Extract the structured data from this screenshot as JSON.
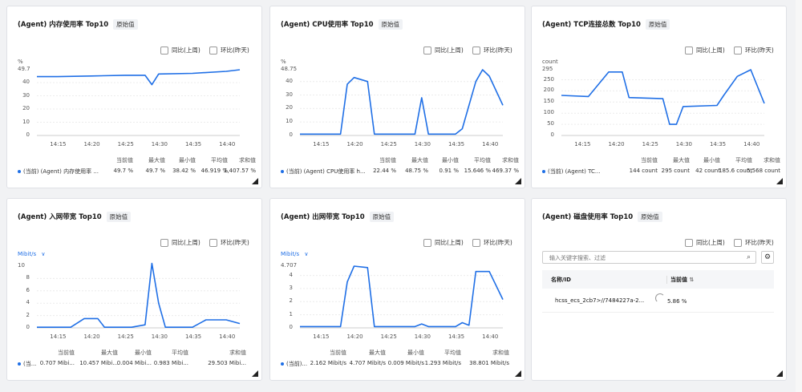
{
  "compare": {
    "week": "同比(上周)",
    "day": "环比(昨天)"
  },
  "raw_tag": "原始值",
  "stat_headers": [
    "当前值",
    "最大值",
    "最小值",
    "平均值",
    "求和值"
  ],
  "cards": [
    {
      "title": "(Agent) 内存使用率 Top10",
      "unit": "%",
      "y_top_label": "49.7",
      "y_ticks": [
        "40",
        "30",
        "20",
        "10",
        "0"
      ],
      "x_ticks": [
        "14:15",
        "14:20",
        "14:25",
        "14:30",
        "14:35",
        "14:40"
      ],
      "series_name": "(当前) (Agent) 内存使用率 ...",
      "stats": [
        "49.7 %",
        "49.7 %",
        "38.42 %",
        "46.919 %",
        "1,407.57 %"
      ]
    },
    {
      "title": "(Agent) CPU使用率 Top10",
      "unit": "%",
      "y_top_label": "48.75",
      "y_ticks": [
        "40",
        "30",
        "20",
        "10",
        "0"
      ],
      "x_ticks": [
        "14:15",
        "14:20",
        "14:25",
        "14:30",
        "14:35",
        "14:40"
      ],
      "series_name": "(当前) (Agent) CPU使用率 h...",
      "stats": [
        "22.44 %",
        "48.75 %",
        "0.91 %",
        "15.646 %",
        "469.37 %"
      ]
    },
    {
      "title": "(Agent) TCP连接总数 Top10",
      "unit": "count",
      "y_top_label": "295",
      "y_ticks": [
        "250",
        "200",
        "150",
        "100",
        "50",
        "0"
      ],
      "x_ticks": [
        "14:15",
        "14:20",
        "14:25",
        "14:30",
        "14:35",
        "14:40"
      ],
      "series_name": "(当前) (Agent) TC...",
      "stats": [
        "144 count",
        "295 count",
        "42 count",
        "185.6 count",
        "5,568 count"
      ]
    },
    {
      "title": "(Agent) 入网带宽 Top10",
      "unit": "Mibit/s",
      "y_top_label": "10",
      "y_ticks": [
        "8",
        "6",
        "4",
        "2",
        "0"
      ],
      "x_ticks": [
        "14:15",
        "14:20",
        "14:25",
        "14:30",
        "14:35",
        "14:40"
      ],
      "series_name": "(当...",
      "stats": [
        "0.707 Mibi...",
        "10.457 Mibi...",
        "0.004 Mibi...",
        "0.983 Mibi...",
        "29.503 Mibi..."
      ]
    },
    {
      "title": "(Agent) 出网带宽 Top10",
      "unit": "Mibit/s",
      "y_top_label": "4.707",
      "y_ticks": [
        "4",
        "3",
        "2",
        "1",
        "0"
      ],
      "x_ticks": [
        "14:15",
        "14:20",
        "14:25",
        "14:30",
        "14:35",
        "14:40"
      ],
      "series_name": "(当前)...",
      "stats": [
        "2.162 Mibit/s",
        "4.707 Mibit/s",
        "0.009 Mibit/s",
        "1.293 Mibit/s",
        "38.801 Mibit/s"
      ]
    }
  ],
  "disk": {
    "title": "(Agent) 磁盘使用率 Top10",
    "search_placeholder": "输入关键字搜索、过滤",
    "col_name": "名称/ID",
    "col_current": "当前值",
    "row_name": "hcss_ecs_2cb7>//7484227a-2...",
    "row_value": "5.86 %"
  },
  "chart_data": [
    {
      "type": "line",
      "title": "(Agent) 内存使用率 Top10",
      "ylabel": "%",
      "ylim": [
        0,
        49.7
      ],
      "x": [
        "14:12",
        "14:15",
        "14:20",
        "14:25",
        "14:28",
        "14:29",
        "14:30",
        "14:35",
        "14:40",
        "14:42"
      ],
      "values": [
        44.5,
        44.5,
        45,
        45.5,
        45.5,
        38.4,
        46.5,
        47,
        48.5,
        49.7
      ]
    },
    {
      "type": "line",
      "title": "(Agent) CPU使用率 Top10",
      "ylabel": "%",
      "ylim": [
        0,
        48.75
      ],
      "x": [
        "14:12",
        "14:18",
        "14:19",
        "14:20",
        "14:22",
        "14:23",
        "14:29",
        "14:30",
        "14:31",
        "14:35",
        "14:36",
        "14:38",
        "14:39",
        "14:40",
        "14:42"
      ],
      "values": [
        1,
        1,
        38,
        43,
        40,
        1,
        1,
        28,
        1,
        1,
        5,
        40,
        48.75,
        44,
        22.44
      ]
    },
    {
      "type": "line",
      "title": "(Agent) TCP连接总数 Top10",
      "ylabel": "count",
      "ylim": [
        0,
        295
      ],
      "x": [
        "14:12",
        "14:16",
        "14:19",
        "14:21",
        "14:22",
        "14:27",
        "14:28",
        "14:29",
        "14:30",
        "14:35",
        "14:36",
        "14:38",
        "14:40",
        "14:42"
      ],
      "values": [
        180,
        175,
        285,
        285,
        170,
        165,
        50,
        50,
        130,
        135,
        180,
        265,
        295,
        144
      ]
    },
    {
      "type": "line",
      "title": "(Agent) 入网带宽 Top10",
      "ylabel": "Mibit/s",
      "ylim": [
        0,
        10
      ],
      "x": [
        "14:12",
        "14:17",
        "14:19",
        "14:21",
        "14:22",
        "14:26",
        "14:28",
        "14:29",
        "14:30",
        "14:31",
        "14:35",
        "14:37",
        "14:40",
        "14:42"
      ],
      "values": [
        0.1,
        0.1,
        1.5,
        1.5,
        0.1,
        0.1,
        0.5,
        10.457,
        4,
        0.1,
        0.1,
        1.3,
        1.3,
        0.707
      ]
    },
    {
      "type": "line",
      "title": "(Agent) 出网带宽 Top10",
      "ylabel": "Mibit/s",
      "ylim": [
        0,
        4.707
      ],
      "x": [
        "14:12",
        "14:18",
        "14:19",
        "14:20",
        "14:22",
        "14:23",
        "14:29",
        "14:30",
        "14:31",
        "14:35",
        "14:36",
        "14:37",
        "14:38",
        "14:40",
        "14:42"
      ],
      "values": [
        0.1,
        0.1,
        3.5,
        4.707,
        4.6,
        0.1,
        0.1,
        0.3,
        0.1,
        0.1,
        0.4,
        0.2,
        4.3,
        4.3,
        2.162
      ]
    }
  ]
}
